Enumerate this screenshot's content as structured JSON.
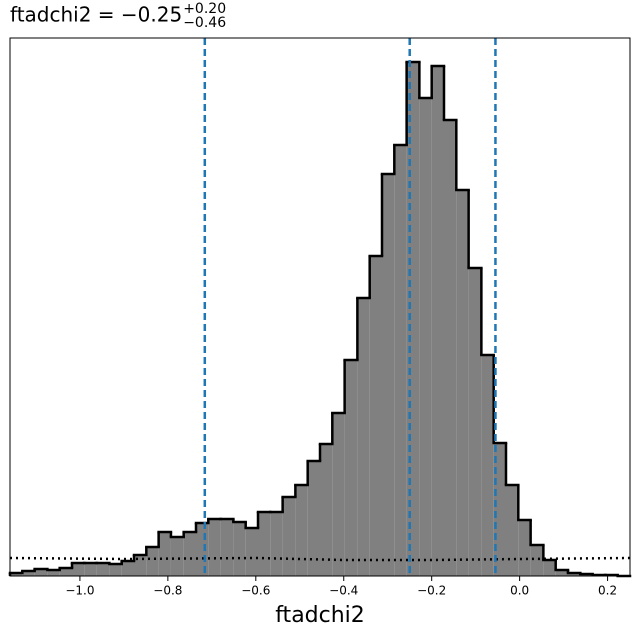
{
  "chart_data": {
    "type": "histogram",
    "title": "ftadchi2 = −0.25",
    "title_sup": "+0.20",
    "title_sub": "−0.46",
    "xlabel": "ftadchi2",
    "bins": [
      -1.159,
      -1.131,
      -1.103,
      -1.074,
      -1.046,
      -1.018,
      -0.99,
      -0.962,
      -0.933,
      -0.905,
      -0.877,
      -0.849,
      -0.821,
      -0.793,
      -0.764,
      -0.736,
      -0.708,
      -0.68,
      -0.651,
      -0.623,
      -0.595,
      -0.567,
      -0.539,
      -0.51,
      -0.482,
      -0.454,
      -0.426,
      -0.398,
      -0.369,
      -0.341,
      -0.313,
      -0.285,
      -0.257,
      -0.228,
      -0.2,
      -0.172,
      -0.144,
      -0.116,
      -0.087,
      -0.059,
      -0.031,
      -0.003,
      0.025,
      0.054,
      0.082,
      0.11,
      0.138,
      0.166,
      0.195,
      0.223,
      0.251
    ],
    "values": [
      3,
      5,
      7,
      6,
      8,
      13,
      13,
      13,
      12,
      15,
      21,
      29,
      44,
      39,
      44,
      53,
      57,
      57,
      54,
      48,
      64,
      64,
      79,
      91,
      115,
      132,
      163,
      216,
      278,
      320,
      402,
      431,
      514,
      478,
      510,
      456,
      386,
      308,
      221,
      133,
      91,
      56,
      31,
      16,
      6,
      3,
      2,
      1,
      1,
      0
    ],
    "color": "#808080",
    "edge_color": "#000000",
    "prior": {
      "x": [
        -1.159,
        -0.9,
        -0.6,
        -0.4,
        -0.2,
        0.0,
        0.251
      ],
      "values": [
        18,
        17,
        18,
        16,
        16,
        17,
        18
      ]
    },
    "quantiles": [
      -0.716,
      -0.25,
      -0.055
    ],
    "quantile_color": "#1f77b4",
    "xlim": [
      -1.159,
      0.251
    ],
    "ylim": [
      0,
      538
    ],
    "xticks": [
      {
        "value": -1.0,
        "label": "−1.0"
      },
      {
        "value": -0.8,
        "label": "−0.8"
      },
      {
        "value": -0.6,
        "label": "−0.6"
      },
      {
        "value": -0.4,
        "label": "−0.4"
      },
      {
        "value": -0.2,
        "label": "−0.2"
      },
      {
        "value": 0.0,
        "label": "0.0"
      },
      0.2
    ]
  }
}
